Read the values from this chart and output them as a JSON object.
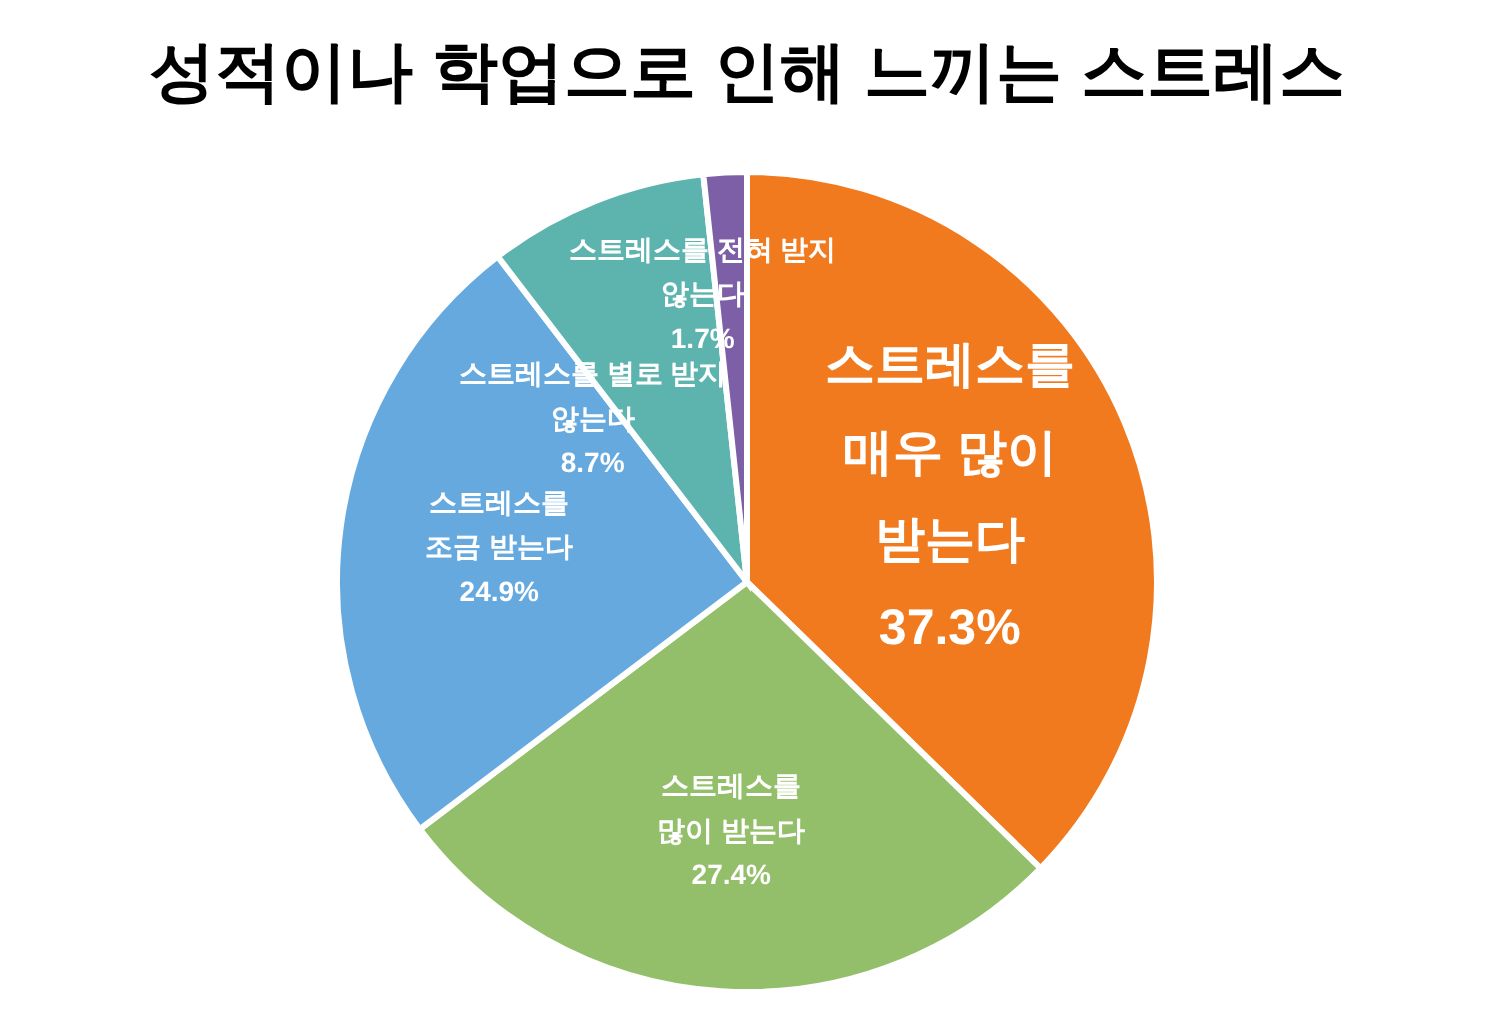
{
  "chart_data": {
    "type": "pie",
    "title": "성적이나 학업으로 인해 느끼는 스트레스",
    "categories": [
      "스트레스를 매우 많이 받는다",
      "스트레스를 많이 받는다",
      "스트레스를 조금 받는다",
      "스트레스를 별로 받지 않는다",
      "스트레스를 전혀 받지 않는다"
    ],
    "values": [
      37.3,
      27.4,
      24.9,
      8.7,
      1.7
    ],
    "colors": [
      "#f07a1d",
      "#93bf6b",
      "#66a9de",
      "#5db4ae",
      "#7c5fa6"
    ],
    "value_labels": [
      "37.3%",
      "27.4%",
      "24.9%",
      "8.7%",
      "1.7%"
    ]
  }
}
